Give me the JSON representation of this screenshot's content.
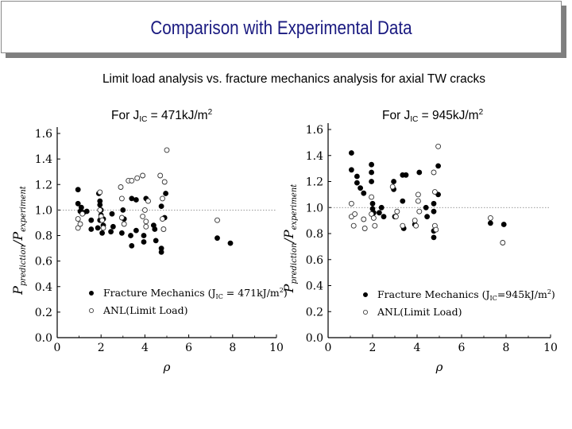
{
  "slide": {
    "title": "Comparison with Experimental Data",
    "subtitle": "Limit load analysis vs. fracture mechanics analysis for axial TW cracks"
  },
  "panels": [
    {
      "caption_pre": "For J",
      "caption_sub": "IC",
      "caption_mid": " = 471kJ/m",
      "caption_sup": "2"
    },
    {
      "caption_pre": "For J",
      "caption_sub": "IC",
      "caption_mid": " = 945kJ/m",
      "caption_sup": "2"
    }
  ],
  "colors": {
    "title": "#1a1a80",
    "filled": "#000000",
    "open_stroke": "#333333",
    "refline": "#777777"
  },
  "chart_data": [
    {
      "type": "scatter",
      "xlabel": "ρ",
      "ylabel": "P_prediction / P_experiment",
      "xlim": [
        0,
        10
      ],
      "ylim": [
        0.0,
        1.6
      ],
      "xticks": [
        0,
        2,
        4,
        6,
        8,
        10
      ],
      "yticks": [
        0.0,
        0.2,
        0.4,
        0.6,
        0.8,
        1.0,
        1.2,
        1.4,
        1.6
      ],
      "reference_line": 1.0,
      "legend_position": "bottom-left",
      "series": [
        {
          "name": "Fracture Mechanics (J_IC = 471kJ/m²)",
          "legend_main": "Fracture Mechanics (J",
          "legend_sub": "IC",
          "legend_rest": " = 471kJ/m",
          "legend_sup": "2",
          "legend_close": ")",
          "marker": "filled-circle",
          "points": [
            [
              0.95,
              1.16
            ],
            [
              0.95,
              1.05
            ],
            [
              1.05,
              0.99
            ],
            [
              1.1,
              1.02
            ],
            [
              1.2,
              0.98
            ],
            [
              1.35,
              0.99
            ],
            [
              1.55,
              0.85
            ],
            [
              1.55,
              0.92
            ],
            [
              1.85,
              0.86
            ],
            [
              1.9,
              1.13
            ],
            [
              1.95,
              1.07
            ],
            [
              1.95,
              1.04
            ],
            [
              1.95,
              0.92
            ],
            [
              2.0,
              0.96
            ],
            [
              2.0,
              1.0
            ],
            [
              2.05,
              0.82
            ],
            [
              2.1,
              0.88
            ],
            [
              2.1,
              0.93
            ],
            [
              2.45,
              0.83
            ],
            [
              2.5,
              0.97
            ],
            [
              2.55,
              0.87
            ],
            [
              2.95,
              0.82
            ],
            [
              3.0,
              1.0
            ],
            [
              3.05,
              0.93
            ],
            [
              3.35,
              0.8
            ],
            [
              3.4,
              0.72
            ],
            [
              3.4,
              1.09
            ],
            [
              3.6,
              1.08
            ],
            [
              3.6,
              0.84
            ],
            [
              3.95,
              0.8
            ],
            [
              3.95,
              0.75
            ],
            [
              4.05,
              1.09
            ],
            [
              4.4,
              0.88
            ],
            [
              4.45,
              0.85
            ],
            [
              4.5,
              0.76
            ],
            [
              4.75,
              1.03
            ],
            [
              4.75,
              0.7
            ],
            [
              4.75,
              0.67
            ],
            [
              4.9,
              0.94
            ],
            [
              4.95,
              1.13
            ],
            [
              7.3,
              0.78
            ],
            [
              7.9,
              0.74
            ]
          ]
        },
        {
          "name": "ANL(Limit Load)",
          "legend_main": "ANL(Limit Load)",
          "marker": "open-circle",
          "points": [
            [
              0.95,
              0.86
            ],
            [
              0.95,
              0.93
            ],
            [
              1.05,
              0.89
            ],
            [
              1.15,
              0.97
            ],
            [
              1.95,
              1.14
            ],
            [
              1.95,
              1.0
            ],
            [
              2.0,
              0.95
            ],
            [
              2.05,
              0.92
            ],
            [
              2.1,
              0.86
            ],
            [
              2.9,
              1.18
            ],
            [
              2.95,
              1.09
            ],
            [
              2.95,
              0.94
            ],
            [
              3.05,
              0.89
            ],
            [
              3.25,
              1.23
            ],
            [
              3.4,
              1.23
            ],
            [
              3.65,
              1.25
            ],
            [
              3.9,
              1.27
            ],
            [
              3.9,
              0.95
            ],
            [
              4.0,
              1.0
            ],
            [
              4.05,
              0.91
            ],
            [
              4.05,
              0.87
            ],
            [
              4.15,
              1.07
            ],
            [
              4.7,
              1.27
            ],
            [
              4.8,
              1.09
            ],
            [
              4.8,
              0.93
            ],
            [
              4.85,
              0.85
            ],
            [
              4.9,
              1.22
            ],
            [
              5.0,
              1.47
            ],
            [
              7.3,
              0.92
            ]
          ]
        }
      ]
    },
    {
      "type": "scatter",
      "xlabel": "ρ",
      "ylabel": "P_prediction / P_experiment",
      "xlim": [
        0,
        10
      ],
      "ylim": [
        0.0,
        1.6
      ],
      "xticks": [
        0,
        2,
        4,
        6,
        8,
        10
      ],
      "yticks": [
        0.0,
        0.2,
        0.4,
        0.6,
        0.8,
        1.0,
        1.2,
        1.4,
        1.6
      ],
      "reference_line": 1.0,
      "legend_position": "bottom-left",
      "series": [
        {
          "name": "Fracture Mechanics (J_IC = 945kJ/m²)",
          "legend_main": "Fracture Mechanics (J",
          "legend_sub": "IC",
          "legend_rest": "=945kJ/m",
          "legend_sup": "2",
          "legend_close": ")",
          "marker": "filled-circle",
          "points": [
            [
              1.05,
              1.42
            ],
            [
              1.05,
              1.29
            ],
            [
              1.3,
              1.19
            ],
            [
              1.3,
              1.24
            ],
            [
              1.45,
              1.15
            ],
            [
              1.6,
              1.11
            ],
            [
              1.95,
              1.33
            ],
            [
              1.95,
              1.27
            ],
            [
              1.95,
              1.2
            ],
            [
              2.0,
              1.03
            ],
            [
              2.0,
              0.99
            ],
            [
              2.05,
              0.96
            ],
            [
              2.3,
              0.96
            ],
            [
              2.4,
              1.0
            ],
            [
              2.5,
              0.93
            ],
            [
              2.95,
              1.2
            ],
            [
              2.95,
              1.14
            ],
            [
              3.0,
              0.93
            ],
            [
              3.35,
              1.25
            ],
            [
              3.35,
              1.05
            ],
            [
              3.4,
              0.84
            ],
            [
              3.5,
              1.25
            ],
            [
              3.9,
              0.87
            ],
            [
              4.1,
              1.27
            ],
            [
              4.45,
              0.93
            ],
            [
              4.4,
              1.0
            ],
            [
              4.75,
              1.03
            ],
            [
              4.75,
              0.97
            ],
            [
              4.75,
              0.82
            ],
            [
              4.75,
              0.77
            ],
            [
              4.95,
              1.32
            ],
            [
              4.95,
              1.1
            ],
            [
              7.3,
              0.88
            ],
            [
              7.9,
              0.87
            ]
          ]
        },
        {
          "name": "ANL(Limit Load)",
          "legend_main": "ANL(Limit Load)",
          "marker": "open-circle",
          "points": [
            [
              1.05,
              1.03
            ],
            [
              1.05,
              0.93
            ],
            [
              1.15,
              0.86
            ],
            [
              1.2,
              0.95
            ],
            [
              1.6,
              0.91
            ],
            [
              1.65,
              0.84
            ],
            [
              1.95,
              1.08
            ],
            [
              1.95,
              0.95
            ],
            [
              2.05,
              0.92
            ],
            [
              2.1,
              0.86
            ],
            [
              2.9,
              1.16
            ],
            [
              3.05,
              0.93
            ],
            [
              3.1,
              0.97
            ],
            [
              3.35,
              0.86
            ],
            [
              3.9,
              0.9
            ],
            [
              3.95,
              0.86
            ],
            [
              4.05,
              1.1
            ],
            [
              4.05,
              1.05
            ],
            [
              4.1,
              0.97
            ],
            [
              4.75,
              1.27
            ],
            [
              4.8,
              1.12
            ],
            [
              4.8,
              0.86
            ],
            [
              4.85,
              0.83
            ],
            [
              4.95,
              1.47
            ],
            [
              7.3,
              0.92
            ],
            [
              7.85,
              0.73
            ]
          ]
        }
      ]
    }
  ]
}
